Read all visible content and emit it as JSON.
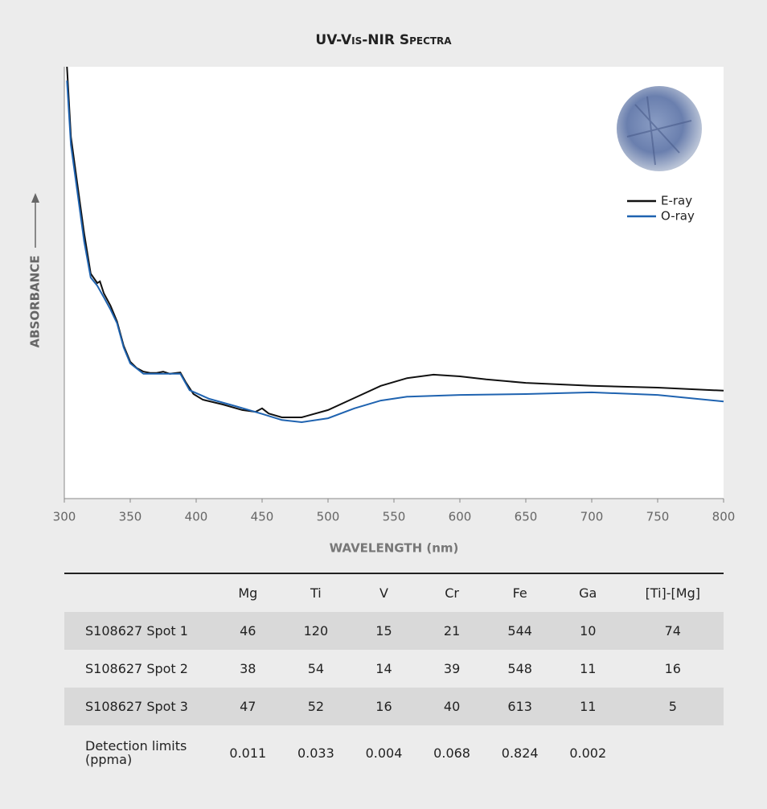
{
  "chart_data": {
    "type": "line",
    "title": "UV-Vis-NIR Spectra",
    "x_label": "WAVELENGTH (nm)",
    "y_label": "ABSORBANCE",
    "xlim": [
      300,
      800
    ],
    "xticks": [
      300,
      350,
      400,
      450,
      500,
      550,
      600,
      650,
      700,
      750,
      800
    ],
    "ylim": [
      0,
      100
    ],
    "legend": "upper right",
    "series": [
      {
        "name": "E-ray",
        "color": "#111111",
        "x": [
          302,
          305,
          310,
          315,
          320,
          325,
          327,
          330,
          335,
          340,
          345,
          350,
          355,
          360,
          365,
          370,
          375,
          380,
          385,
          388,
          392,
          398,
          405,
          420,
          435,
          445,
          450,
          455,
          465,
          480,
          500,
          520,
          540,
          560,
          580,
          600,
          620,
          650,
          700,
          750,
          800
        ],
        "values": [
          100,
          83.8,
          72.6,
          61.5,
          52.1,
          49.9,
          50.3,
          47.5,
          44.7,
          41.0,
          35.4,
          31.7,
          30.2,
          29.4,
          29.1,
          29.1,
          29.4,
          28.9,
          29.1,
          29.2,
          27.0,
          24.2,
          22.9,
          21.8,
          20.5,
          20.1,
          20.9,
          19.7,
          18.8,
          18.8,
          20.5,
          23.3,
          26.1,
          27.9,
          28.7,
          28.3,
          27.6,
          26.8,
          26.1,
          25.7,
          25.0
        ]
      },
      {
        "name": "O-ray",
        "color": "#1f63b0",
        "x": [
          302,
          305,
          310,
          315,
          320,
          325,
          330,
          335,
          340,
          345,
          350,
          360,
          370,
          380,
          388,
          395,
          410,
          430,
          450,
          465,
          480,
          500,
          520,
          540,
          560,
          600,
          650,
          700,
          750,
          800
        ],
        "values": [
          96.8,
          81.9,
          70.8,
          59.6,
          51.2,
          49.3,
          46.6,
          43.8,
          40.6,
          35.0,
          31.3,
          28.9,
          28.9,
          28.9,
          28.9,
          25.1,
          23.1,
          21.4,
          19.6,
          18.2,
          17.7,
          18.6,
          20.9,
          22.7,
          23.6,
          24.0,
          24.2,
          24.6,
          24.0,
          22.5
        ]
      }
    ]
  },
  "table": {
    "columns": [
      "Mg",
      "Ti",
      "V",
      "Cr",
      "Fe",
      "Ga",
      "[Ti]-[Mg]"
    ],
    "rows": [
      {
        "label": "S108627 Spot 1",
        "cells": [
          46,
          120,
          15,
          21,
          544,
          10,
          74
        ]
      },
      {
        "label": "S108627 Spot 2",
        "cells": [
          38,
          54,
          14,
          39,
          548,
          11,
          16
        ]
      },
      {
        "label": "S108627 Spot 3",
        "cells": [
          47,
          52,
          16,
          40,
          613,
          11,
          5
        ]
      },
      {
        "label": "Detection limits (ppma)",
        "cells": [
          0.011,
          0.033,
          0.004,
          0.068,
          0.824,
          0.002
        ]
      }
    ]
  }
}
